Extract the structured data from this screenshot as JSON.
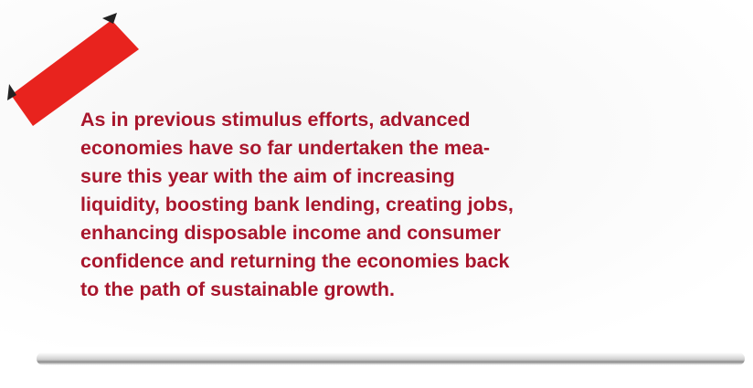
{
  "quote": {
    "lines": [
      "As in previous stimulus efforts, advanced",
      "economies have so far undertaken the mea-",
      "sure this year with the aim of increasing",
      "liquidity, boosting bank lending, creating jobs,",
      "enhancing disposable income and consumer",
      "confidence and returning the economies back",
      "to the path of sustainable growth."
    ]
  }
}
